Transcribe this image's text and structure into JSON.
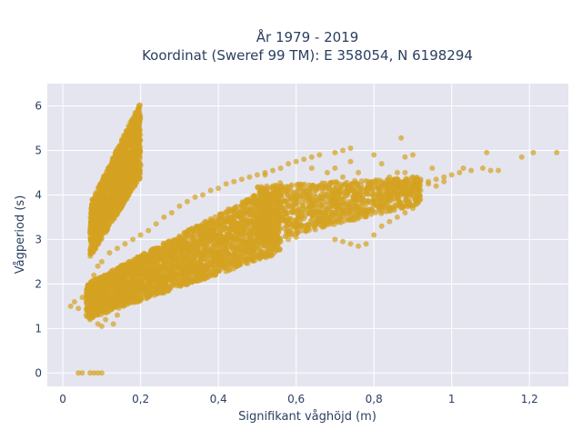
{
  "chart_data": {
    "type": "scatter",
    "title_line1": "År 1979 - 2019",
    "title_line2": "Koordinat (Sweref 99 TM): E 358054, N 6198294",
    "xlabel": "Signifikant våghöjd (m)",
    "ylabel": "Vågperiod (s)",
    "xlim": [
      -0.04,
      1.3
    ],
    "ylim": [
      -0.3,
      6.5
    ],
    "x_ticks": [
      0,
      0.2,
      0.4,
      0.6,
      0.8,
      1.0,
      1.2
    ],
    "x_tick_labels": [
      "0",
      "0,2",
      "0,4",
      "0,6",
      "0,8",
      "1",
      "1,2"
    ],
    "y_ticks": [
      0,
      1,
      2,
      3,
      4,
      5,
      6
    ],
    "y_tick_labels": [
      "0",
      "1",
      "2",
      "3",
      "4",
      "5",
      "6"
    ],
    "grid": true,
    "marker_color": "#d4a221",
    "plot_bg": "#e5e5f0",
    "series": [
      {
        "values": [
          [
            0.04,
            0.0
          ],
          [
            0.05,
            0.0
          ],
          [
            0.07,
            0.0
          ],
          [
            0.08,
            0.0
          ],
          [
            0.09,
            0.0
          ],
          [
            0.1,
            0.0
          ],
          [
            0.02,
            1.5
          ],
          [
            0.03,
            1.6
          ],
          [
            0.04,
            1.45
          ],
          [
            0.05,
            1.7
          ],
          [
            0.06,
            1.3
          ],
          [
            0.07,
            1.2
          ],
          [
            0.08,
            1.4
          ],
          [
            0.09,
            1.1
          ],
          [
            0.1,
            1.05
          ],
          [
            0.11,
            1.2
          ],
          [
            0.13,
            1.1
          ],
          [
            0.14,
            1.3
          ],
          [
            0.06,
            1.8
          ],
          [
            0.07,
            2.0
          ],
          [
            0.08,
            2.2
          ],
          [
            0.09,
            2.4
          ],
          [
            0.1,
            2.5
          ],
          [
            0.12,
            2.7
          ],
          [
            0.14,
            2.8
          ],
          [
            0.16,
            2.9
          ],
          [
            0.18,
            3.0
          ],
          [
            0.2,
            3.1
          ],
          [
            0.22,
            3.2
          ],
          [
            0.24,
            3.35
          ],
          [
            0.26,
            3.5
          ],
          [
            0.28,
            3.6
          ],
          [
            0.3,
            3.75
          ],
          [
            0.32,
            3.85
          ],
          [
            0.34,
            3.95
          ],
          [
            0.36,
            4.0
          ],
          [
            0.38,
            4.1
          ],
          [
            0.4,
            4.15
          ],
          [
            0.42,
            4.25
          ],
          [
            0.44,
            4.3
          ],
          [
            0.46,
            4.35
          ],
          [
            0.48,
            4.4
          ],
          [
            0.5,
            4.45
          ],
          [
            0.52,
            4.5
          ],
          [
            0.54,
            4.55
          ],
          [
            0.1,
            1.6
          ],
          [
            0.12,
            1.7
          ],
          [
            0.14,
            1.75
          ],
          [
            0.16,
            1.8
          ],
          [
            0.18,
            1.85
          ],
          [
            0.2,
            1.9
          ],
          [
            0.22,
            2.0
          ],
          [
            0.24,
            2.05
          ],
          [
            0.26,
            2.1
          ],
          [
            0.28,
            2.15
          ],
          [
            0.3,
            2.2
          ],
          [
            0.32,
            2.3
          ],
          [
            0.34,
            2.35
          ],
          [
            0.36,
            2.4
          ],
          [
            0.38,
            2.5
          ],
          [
            0.4,
            2.55
          ],
          [
            0.42,
            2.6
          ],
          [
            0.44,
            2.65
          ],
          [
            0.46,
            2.7
          ],
          [
            0.48,
            2.75
          ],
          [
            0.5,
            2.8
          ],
          [
            0.52,
            2.85
          ],
          [
            0.54,
            2.9
          ],
          [
            0.56,
            2.95
          ],
          [
            0.58,
            3.0
          ],
          [
            0.6,
            3.05
          ],
          [
            0.56,
            4.6
          ],
          [
            0.58,
            4.7
          ],
          [
            0.6,
            4.75
          ],
          [
            0.62,
            4.8
          ],
          [
            0.64,
            4.85
          ],
          [
            0.66,
            4.9
          ],
          [
            0.6,
            3.2
          ],
          [
            0.62,
            3.3
          ],
          [
            0.64,
            3.35
          ],
          [
            0.66,
            3.4
          ],
          [
            0.68,
            3.5
          ],
          [
            0.7,
            3.55
          ],
          [
            0.72,
            3.6
          ],
          [
            0.74,
            3.7
          ],
          [
            0.76,
            3.75
          ],
          [
            0.78,
            3.8
          ],
          [
            0.8,
            3.85
          ],
          [
            0.82,
            3.9
          ],
          [
            0.84,
            3.95
          ],
          [
            0.86,
            4.0
          ],
          [
            0.64,
            4.6
          ],
          [
            0.68,
            4.5
          ],
          [
            0.7,
            4.6
          ],
          [
            0.72,
            4.4
          ],
          [
            0.74,
            4.75
          ],
          [
            0.76,
            4.5
          ],
          [
            0.7,
            4.95
          ],
          [
            0.72,
            5.0
          ],
          [
            0.74,
            5.05
          ],
          [
            0.7,
            3.0
          ],
          [
            0.72,
            2.95
          ],
          [
            0.74,
            2.9
          ],
          [
            0.76,
            2.85
          ],
          [
            0.78,
            2.9
          ],
          [
            0.8,
            3.1
          ],
          [
            0.82,
            3.3
          ],
          [
            0.84,
            3.4
          ],
          [
            0.86,
            3.5
          ],
          [
            0.88,
            3.6
          ],
          [
            0.9,
            3.7
          ],
          [
            0.82,
            4.3
          ],
          [
            0.84,
            4.4
          ],
          [
            0.86,
            4.5
          ],
          [
            0.88,
            4.5
          ],
          [
            0.9,
            4.4
          ],
          [
            0.92,
            4.35
          ],
          [
            0.94,
            4.3
          ],
          [
            0.96,
            4.35
          ],
          [
            0.98,
            4.4
          ],
          [
            1.0,
            4.45
          ],
          [
            1.02,
            4.5
          ],
          [
            0.8,
            4.9
          ],
          [
            0.82,
            4.7
          ],
          [
            0.88,
            4.85
          ],
          [
            0.9,
            4.9
          ],
          [
            0.95,
            4.6
          ],
          [
            0.87,
            5.28
          ],
          [
            0.88,
            4.2
          ],
          [
            0.9,
            4.15
          ],
          [
            0.92,
            4.1
          ],
          [
            0.94,
            4.25
          ],
          [
            0.96,
            4.2
          ],
          [
            0.98,
            4.3
          ],
          [
            1.03,
            4.6
          ],
          [
            1.05,
            4.55
          ],
          [
            1.08,
            4.6
          ],
          [
            1.1,
            4.55
          ],
          [
            1.12,
            4.55
          ],
          [
            1.09,
            4.95
          ],
          [
            1.18,
            4.85
          ],
          [
            1.21,
            4.95
          ],
          [
            1.27,
            4.95
          ],
          [
            0.52,
            4.45
          ],
          [
            0.55,
            4.2
          ],
          [
            0.53,
            3.8
          ],
          [
            0.58,
            3.6
          ]
        ]
      }
    ],
    "clusters": [
      {
        "shape": "band",
        "x0": 0.07,
        "x1": 0.2,
        "yLowAt": [
          [
            0.07,
            2.6
          ],
          [
            0.2,
            4.4
          ]
        ],
        "yHighAt": [
          [
            0.07,
            3.8
          ],
          [
            0.2,
            6.1
          ]
        ],
        "count": 1400
      },
      {
        "shape": "band",
        "x0": 0.06,
        "x1": 0.56,
        "yLowAt": [
          [
            0.06,
            1.2
          ],
          [
            0.56,
            2.7
          ]
        ],
        "yHighAt": [
          [
            0.06,
            2.0
          ],
          [
            0.56,
            4.3
          ]
        ],
        "count": 2600
      },
      {
        "shape": "band",
        "x0": 0.5,
        "x1": 0.92,
        "yLowAt": [
          [
            0.5,
            2.9
          ],
          [
            0.92,
            3.8
          ]
        ],
        "yHighAt": [
          [
            0.5,
            4.2
          ],
          [
            0.92,
            4.4
          ]
        ],
        "count": 1000
      }
    ]
  }
}
